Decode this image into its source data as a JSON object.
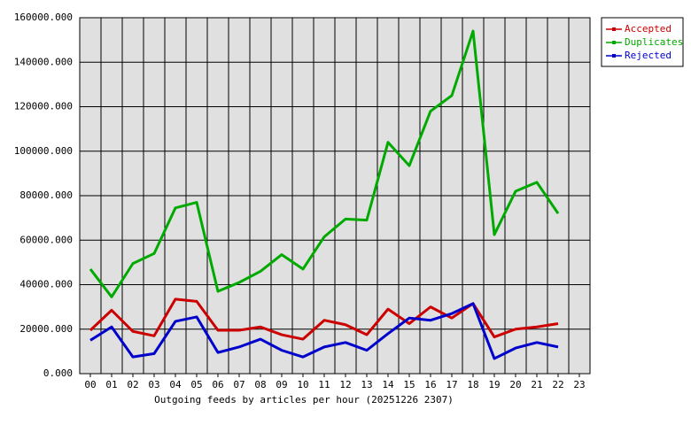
{
  "chart_data": {
    "type": "line",
    "x_label": "Outgoing feeds by articles per hour (20251226 2307)",
    "categories": [
      "00",
      "01",
      "02",
      "03",
      "04",
      "05",
      "06",
      "07",
      "08",
      "09",
      "10",
      "11",
      "12",
      "13",
      "14",
      "15",
      "16",
      "17",
      "18",
      "19",
      "20",
      "21",
      "22",
      "23"
    ],
    "series": [
      {
        "name": "Accepted",
        "color": "#cc0000",
        "values": [
          19500,
          28500,
          19000,
          17000,
          33500,
          32500,
          19500,
          19500,
          21000,
          17500,
          15500,
          24000,
          22000,
          17500,
          29000,
          22500,
          30000,
          25000,
          31500,
          16500,
          20000,
          21000,
          22500,
          null
        ]
      },
      {
        "name": "Duplicates",
        "color": "#00aa00",
        "values": [
          47000,
          34500,
          49500,
          54000,
          74500,
          77000,
          37000,
          41000,
          46000,
          53500,
          47000,
          61500,
          69500,
          69000,
          104000,
          93500,
          118000,
          125000,
          154000,
          62500,
          82000,
          86000,
          72000,
          null
        ]
      },
      {
        "name": "Rejected",
        "color": "#0000cc",
        "values": [
          15000,
          21000,
          7500,
          9000,
          23500,
          25500,
          9500,
          12000,
          15500,
          10500,
          7500,
          12000,
          14000,
          10500,
          18000,
          25000,
          24000,
          27000,
          31500,
          6800,
          11500,
          14000,
          12000,
          null
        ]
      }
    ],
    "ylim": [
      0,
      160000
    ],
    "yticks": [
      {
        "value": 0,
        "label": "0.000"
      },
      {
        "value": 20000,
        "label": "20000.000"
      },
      {
        "value": 40000,
        "label": "40000.000"
      },
      {
        "value": 60000,
        "label": "60000.000"
      },
      {
        "value": 80000,
        "label": "80000.000"
      },
      {
        "value": 100000,
        "label": "100000.000"
      },
      {
        "value": 120000,
        "label": "120000.000"
      },
      {
        "value": 140000,
        "label": "140000.000"
      },
      {
        "value": 160000,
        "label": "160000.000"
      }
    ],
    "grid": true,
    "legend": "right"
  }
}
